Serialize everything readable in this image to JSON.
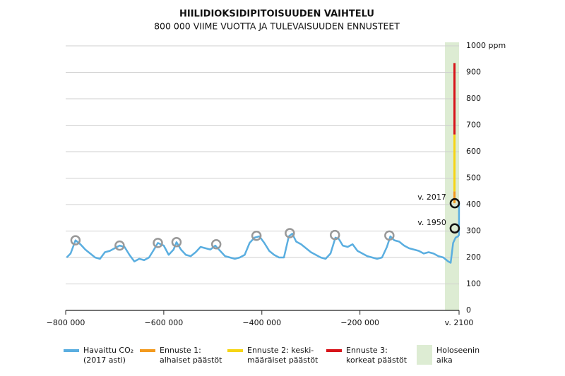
{
  "chart_data": {
    "type": "line",
    "title": "HIILIDIOKSIDIPITOISUUDEN VAIHTELU",
    "subtitle": "800 000 VIIME VUOTTA JA TULEVAISUUDEN ENNUSTEET",
    "xlim": [
      -800000,
      2100
    ],
    "ylim": [
      0,
      1000
    ],
    "xticks": [
      {
        "value": -800000,
        "label": "−800 000"
      },
      {
        "value": -600000,
        "label": "−600 000"
      },
      {
        "value": -400000,
        "label": "−400 000"
      },
      {
        "value": -200000,
        "label": "−200 000"
      },
      {
        "value": 2100,
        "label": "v. 2100"
      }
    ],
    "yticks": [
      0,
      100,
      200,
      300,
      400,
      500,
      600,
      700,
      800,
      900,
      {
        "value": 1000,
        "label": "1000 ppm"
      }
    ],
    "grid": true,
    "x": [
      -798000,
      -790000,
      -780000,
      -770000,
      -760000,
      -750000,
      -740000,
      -730000,
      -720000,
      -710000,
      -700000,
      -690000,
      -680000,
      -670000,
      -660000,
      -650000,
      -640000,
      -630000,
      -620000,
      -612000,
      -600000,
      -590000,
      -580000,
      -574000,
      -565000,
      -555000,
      -545000,
      -535000,
      -525000,
      -515000,
      -505000,
      -495000,
      -485000,
      -475000,
      -465000,
      -455000,
      -445000,
      -435000,
      -425000,
      -415000,
      -405000,
      -395000,
      -385000,
      -375000,
      -365000,
      -355000,
      -345000,
      -338000,
      -330000,
      -320000,
      -310000,
      -300000,
      -290000,
      -280000,
      -270000,
      -260000,
      -250000,
      -243000,
      -235000,
      -225000,
      -215000,
      -205000,
      -195000,
      -185000,
      -175000,
      -165000,
      -155000,
      -145000,
      -138000,
      -130000,
      -120000,
      -110000,
      -100000,
      -90000,
      -80000,
      -70000,
      -60000,
      -50000,
      -40000,
      -30000,
      -20000,
      -15000,
      -10000,
      -5000,
      0,
      1800,
      1950,
      2017
    ],
    "series": [
      {
        "name": [
          "Havaittu CO₂",
          "(2017 asti)"
        ],
        "color": "#5aaee0",
        "values": [
          200,
          215,
          265,
          250,
          230,
          215,
          200,
          195,
          220,
          225,
          235,
          245,
          240,
          210,
          185,
          195,
          190,
          200,
          230,
          255,
          245,
          210,
          230,
          258,
          230,
          210,
          205,
          220,
          240,
          235,
          230,
          245,
          225,
          205,
          200,
          195,
          200,
          210,
          255,
          275,
          280,
          255,
          225,
          210,
          200,
          200,
          280,
          290,
          260,
          250,
          235,
          220,
          210,
          200,
          195,
          215,
          275,
          270,
          245,
          240,
          250,
          225,
          215,
          205,
          200,
          195,
          200,
          240,
          280,
          265,
          260,
          245,
          235,
          230,
          225,
          215,
          220,
          215,
          205,
          200,
          185,
          180,
          255,
          275,
          280,
          285,
          310,
          405
        ]
      }
    ],
    "forecasts": [
      {
        "name": [
          "Ennuste 1:",
          "alhaiset päästöt"
        ],
        "color": "#f39a1e",
        "low": 405,
        "high": 450
      },
      {
        "name": [
          "Ennuste 2: keski-",
          "määräiset päästöt"
        ],
        "color": "#f6d515",
        "low": 450,
        "high": 665
      },
      {
        "name": [
          "Ennuste 3:",
          "korkeat päästöt"
        ],
        "color": "#d7141a",
        "low": 665,
        "high": 935
      }
    ],
    "holocene": {
      "name": [
        "Holoseenin",
        "aika"
      ],
      "color": "#ddecd3"
    },
    "highlights": [
      {
        "x": -780000,
        "y": 265
      },
      {
        "x": -690000,
        "y": 245
      },
      {
        "x": -612000,
        "y": 255
      },
      {
        "x": -574000,
        "y": 258
      },
      {
        "x": -493000,
        "y": 250
      },
      {
        "x": -411000,
        "y": 282
      },
      {
        "x": -343000,
        "y": 292
      },
      {
        "x": -251000,
        "y": 285
      },
      {
        "x": -140000,
        "y": 283
      }
    ],
    "annotations": [
      {
        "text": "v. 2017",
        "x": 2017,
        "y": 405
      },
      {
        "text": "v. 1950",
        "x": 1950,
        "y": 310
      }
    ]
  }
}
